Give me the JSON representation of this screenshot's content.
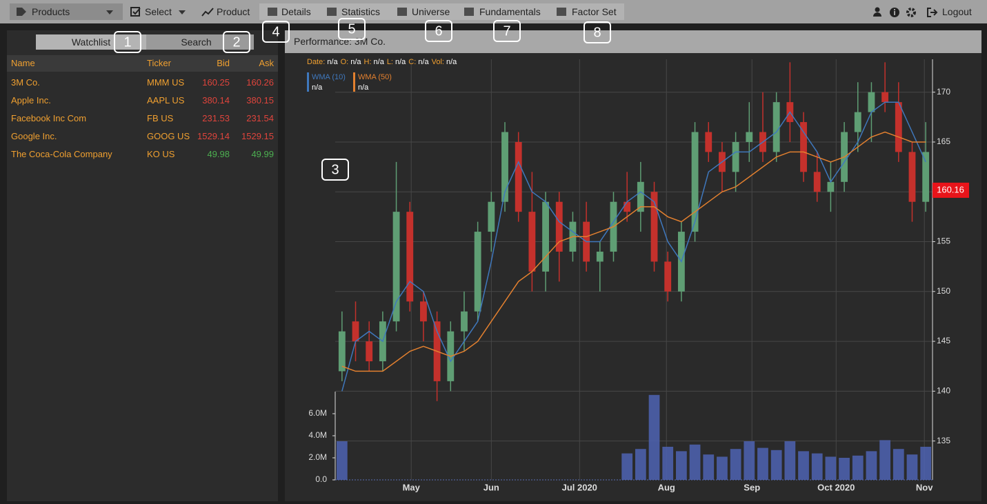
{
  "toolbar": {
    "products": "Products",
    "select": "Select",
    "product": "Product",
    "tabs": [
      "Details",
      "Statistics",
      "Universe",
      "Fundamentals",
      "Factor Set"
    ],
    "logout": "Logout"
  },
  "watchlist": {
    "tabs": [
      "Watchlist",
      "Search"
    ],
    "columns": [
      "Name",
      "Ticker",
      "Bid",
      "Ask"
    ],
    "rows": [
      [
        "3M Co.",
        "MMM US",
        160.25,
        160.26
      ],
      [
        "Apple Inc.",
        "AAPL US",
        380.14,
        380.15
      ],
      [
        "Facebook Inc Com",
        "FB US",
        231.53,
        231.54
      ],
      [
        "Google Inc.",
        "GOOG US",
        1529.14,
        1529.15
      ],
      [
        "The Coca-Cola Company",
        "KO US",
        49.98,
        49.99
      ]
    ],
    "price_colors": [
      "#e0443c",
      "#e0443c",
      "#e0443c",
      "#e0443c",
      "#4caf50"
    ]
  },
  "annotations": [
    "1",
    "2",
    "3",
    "4",
    "5",
    "6",
    "7",
    "8"
  ],
  "chart_data": {
    "type": "candlestick",
    "title": "Performance: 3M Co.",
    "info": [
      {
        "label": "Date:",
        "value": "n/a"
      },
      {
        "label": "O:",
        "value": "n/a"
      },
      {
        "label": "H:",
        "value": "n/a"
      },
      {
        "label": "L:",
        "value": "n/a"
      },
      {
        "label": "C:",
        "value": "n/a"
      },
      {
        "label": "Vol:",
        "value": "n/a"
      }
    ],
    "up_color": "#5f9e74",
    "down_color": "#c4312c",
    "open": [
      142,
      147,
      145,
      143,
      147,
      158,
      149,
      147,
      141,
      146,
      148,
      156,
      159,
      165,
      158,
      152,
      159,
      154,
      157,
      153,
      154,
      159,
      158,
      160,
      153,
      150,
      156,
      166,
      164,
      162,
      165,
      166,
      164,
      169,
      167,
      162,
      160,
      161,
      166,
      168,
      170,
      169,
      164,
      159
    ],
    "high": [
      148,
      149,
      147,
      148,
      163,
      159,
      150,
      148,
      147,
      150,
      157,
      160,
      167,
      166,
      162,
      160,
      160,
      158,
      159,
      155,
      160,
      162,
      163,
      161,
      154,
      157,
      167,
      167,
      165,
      166,
      169,
      170,
      170,
      173,
      168,
      164,
      163,
      167,
      171,
      171,
      173,
      171,
      165,
      167
    ],
    "low": [
      141,
      143,
      142,
      142,
      146,
      148,
      145,
      139,
      140,
      144,
      147,
      154,
      158,
      157,
      150,
      150,
      151,
      153,
      152,
      150,
      153,
      157,
      156,
      152,
      149,
      149,
      155,
      163,
      160,
      160,
      163,
      163,
      163,
      165,
      161,
      159,
      158,
      160,
      164,
      165,
      168,
      163,
      157,
      158
    ],
    "close": [
      146,
      145,
      143,
      147,
      158,
      149,
      147,
      141,
      146,
      148,
      156,
      159,
      166,
      158,
      152,
      159,
      154,
      157,
      153,
      154,
      159,
      158,
      161,
      153,
      150,
      156,
      166,
      164,
      162,
      165,
      166,
      164,
      169,
      167,
      162,
      160,
      161,
      166,
      168,
      170,
      169,
      164,
      159,
      164
    ],
    "overlays": [
      {
        "name": "WMA (10)",
        "color": "#3f78bd",
        "legend_value": "n/a",
        "values": [
          140,
          145,
          146,
          145,
          149,
          151,
          150,
          146,
          143,
          145,
          147,
          153,
          160,
          163,
          160,
          159,
          157,
          156,
          155,
          155,
          157,
          159,
          160,
          159,
          155,
          153,
          157,
          162,
          163,
          164,
          164,
          165,
          166,
          168,
          166,
          164,
          161,
          163,
          165,
          168,
          169,
          169,
          166,
          163
        ]
      },
      {
        "name": "WMA (50)",
        "color": "#e3802f",
        "legend_value": "n/a",
        "values": [
          142.5,
          142,
          142,
          142,
          143,
          144,
          144.5,
          144,
          143.5,
          144,
          145,
          147,
          149,
          151,
          152,
          153.5,
          155,
          155.5,
          155.5,
          156,
          156.5,
          157.5,
          158.5,
          158.5,
          157.5,
          157,
          158,
          159,
          160,
          160.5,
          161.5,
          162.5,
          163.5,
          164,
          164,
          163.5,
          163,
          163.5,
          164.5,
          165.5,
          166,
          165.5,
          165,
          165
        ]
      }
    ],
    "ylim": [
      131.1,
      173.3
    ],
    "yticks": [
      135,
      140,
      145,
      150,
      155,
      160,
      165,
      170
    ],
    "grid": true,
    "last_price": {
      "value": 160.16,
      "color": "#e8141a"
    },
    "xlim": [
      -0.5,
      43.5
    ],
    "xticks": [
      {
        "value": 5.1,
        "label": "May"
      },
      {
        "value": 11,
        "label": "Jun"
      },
      {
        "value": 17.5,
        "label": "Jul 2020"
      },
      {
        "value": 23.9,
        "label": "Aug"
      },
      {
        "value": 30.2,
        "label": "Sep"
      },
      {
        "value": 36.4,
        "label": "Oct 2020"
      },
      {
        "value": 42.9,
        "label": "Nov"
      }
    ],
    "volume": {
      "color": "#4d63b3",
      "ylim": [
        0,
        38.125
      ],
      "yticks": [
        {
          "value": 0,
          "label": "0.0"
        },
        {
          "value": 2,
          "label": "2.0M"
        },
        {
          "value": 4,
          "label": "4.0M"
        },
        {
          "value": 6,
          "label": "6.0M"
        }
      ],
      "values": [
        3.5,
        null,
        null,
        null,
        null,
        null,
        null,
        null,
        null,
        null,
        null,
        null,
        null,
        null,
        null,
        null,
        null,
        null,
        null,
        null,
        null,
        2.4,
        2.8,
        7.7,
        3.0,
        2.6,
        3.2,
        2.3,
        2.1,
        2.8,
        3.5,
        2.9,
        2.7,
        3.5,
        2.6,
        2.4,
        2.1,
        2.0,
        2.2,
        2.6,
        3.6,
        2.8,
        2.3,
        3.0
      ]
    }
  }
}
